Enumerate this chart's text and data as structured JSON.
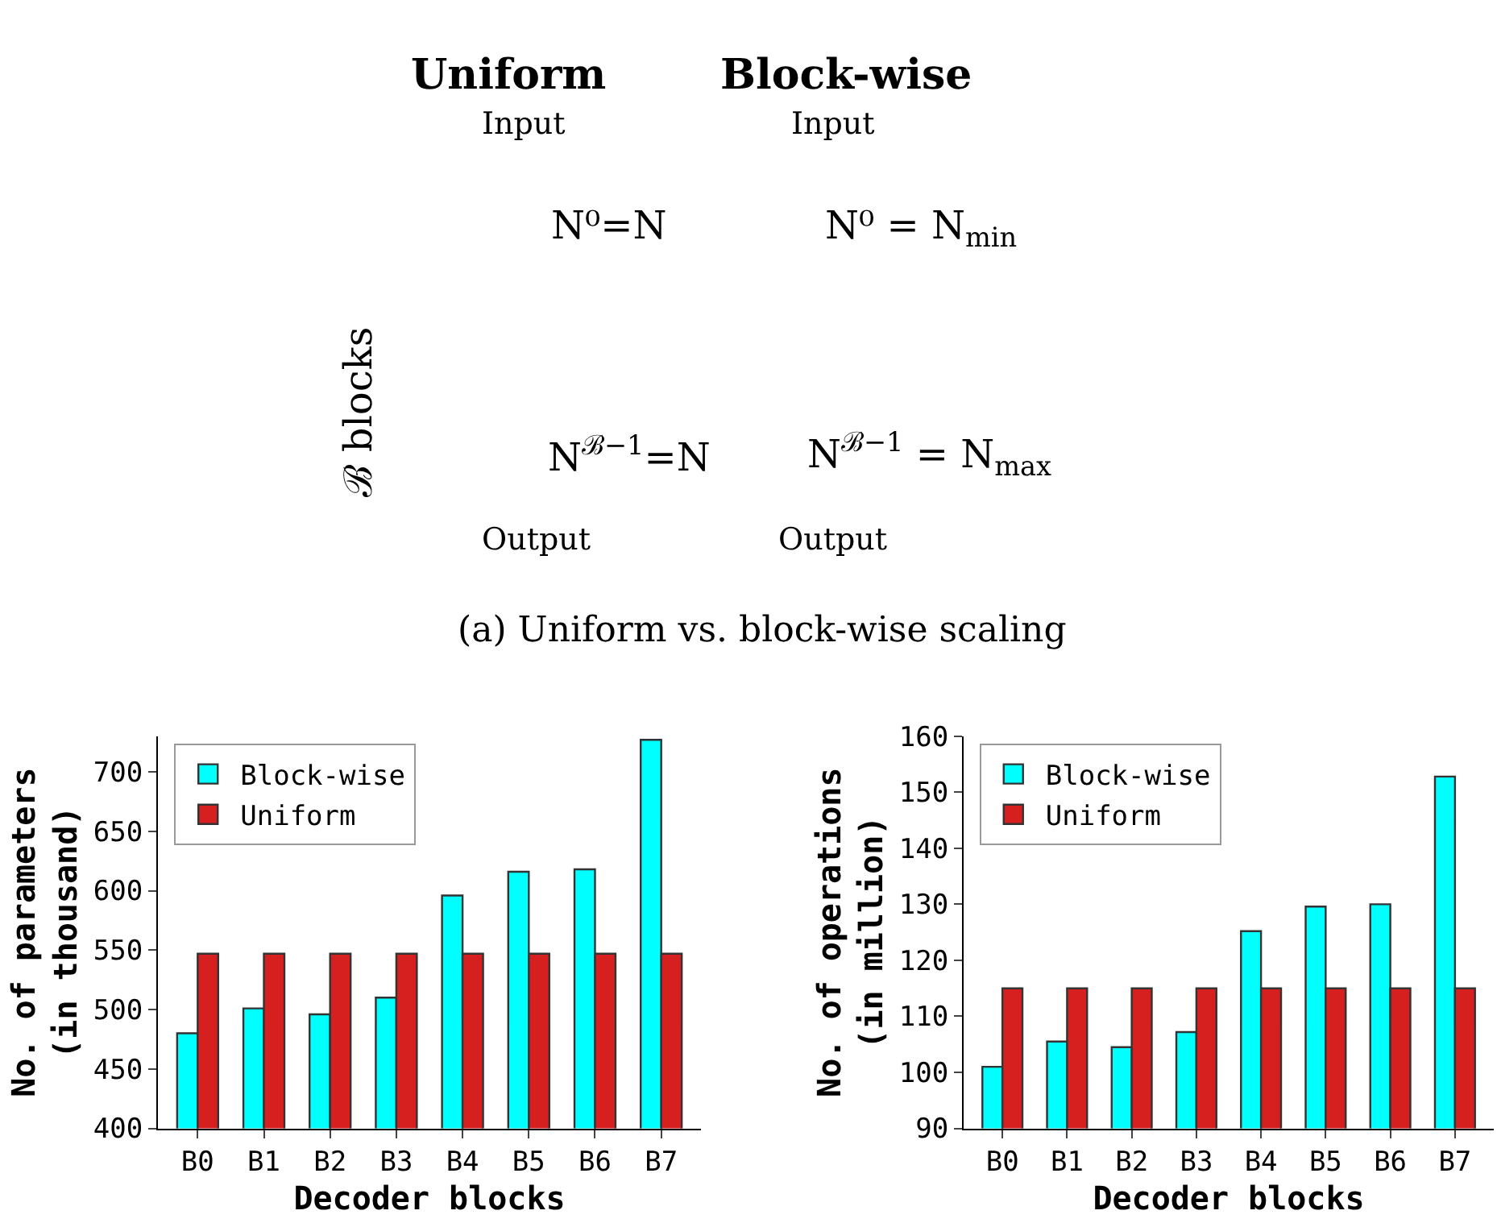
{
  "chart_data": [
    {
      "type": "other",
      "annotations": [
        "Uniform",
        "Block-wise",
        "Input",
        "Input",
        "N⁰=N",
        "N$^{ℬ−1}$=N",
        "Output",
        "Output",
        "ℬ blocks",
        "N⁰ = N$_{min}$",
        "N$^{ℬ−1}$ = N$_{max}$",
        "(a) Uniform vs. block-wise scaling"
      ]
    },
    {
      "type": "bar",
      "categories": [
        "B0",
        "B1",
        "B2",
        "B3",
        "B4",
        "B5",
        "B6",
        "B7"
      ],
      "xlabel": "Decoder blocks",
      "ylabel": "No. of parameters\n(in thousand)",
      "ylim": [
        400,
        730
      ],
      "yticks": [
        400,
        450,
        500,
        550,
        600,
        650,
        700
      ],
      "legend": "top left",
      "series": [
        {
          "name": "Block-wise",
          "color": "#00ffff",
          "values": [
            480,
            501,
            496,
            510,
            596,
            616,
            618,
            727
          ]
        },
        {
          "name": "Uniform",
          "color": "#d62020",
          "values": [
            547,
            547,
            547,
            547,
            547,
            547,
            547,
            547
          ]
        }
      ]
    },
    {
      "type": "bar",
      "categories": [
        "B0",
        "B1",
        "B2",
        "B3",
        "B4",
        "B5",
        "B6",
        "B7"
      ],
      "xlabel": "Decoder blocks",
      "ylabel": "No. of operations\n(in million)",
      "ylim": [
        90,
        160
      ],
      "yticks": [
        90,
        100,
        110,
        120,
        130,
        140,
        150,
        160
      ],
      "legend": "top left",
      "series": [
        {
          "name": "Block-wise",
          "color": "#00ffff",
          "values": [
            101,
            105.5,
            104.5,
            107.2,
            125.2,
            129.6,
            130,
            152.8
          ]
        },
        {
          "name": "Uniform",
          "color": "#d62020",
          "values": [
            115,
            115,
            115,
            115,
            115,
            115,
            115,
            115
          ]
        }
      ]
    }
  ]
}
